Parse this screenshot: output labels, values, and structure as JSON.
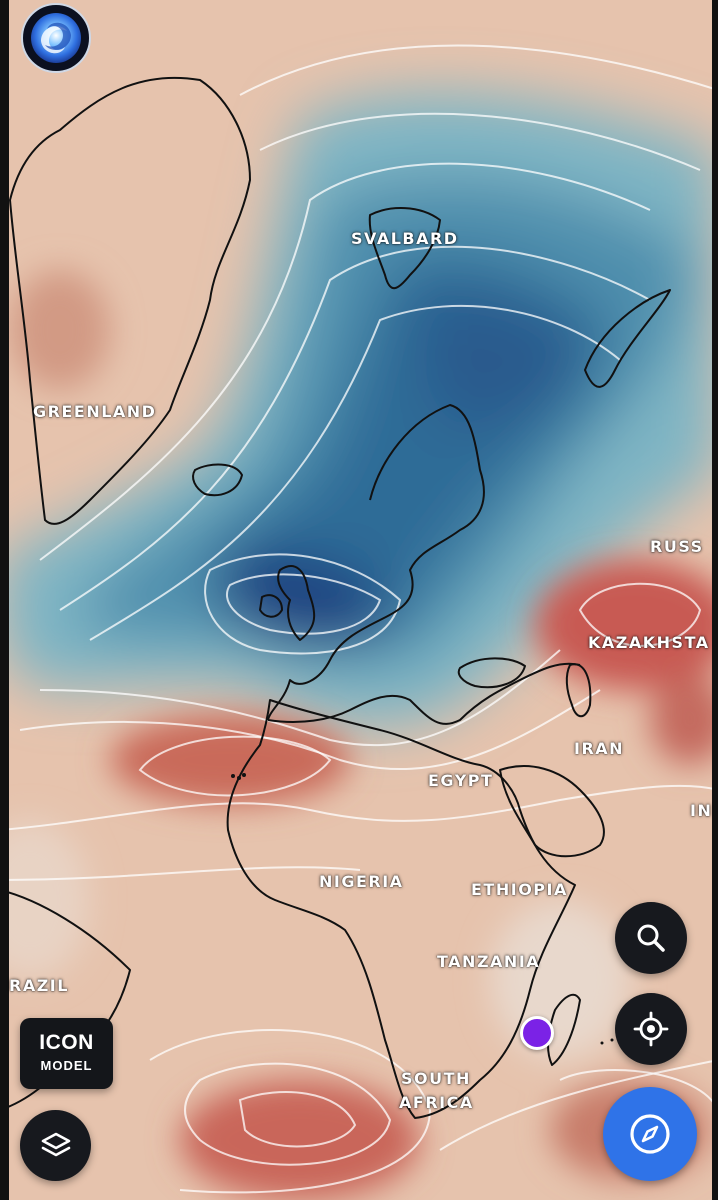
{
  "labels": {
    "svalbard": "SVALBARD",
    "greenland": "GREENLAND",
    "russia": "RUSS",
    "kazakhstan": "KAZAKHSTA",
    "iran": "IRAN",
    "egypt": "EGYPT",
    "india": "IN",
    "nigeria": "NIGERIA",
    "ethiopia": "ETHIOPIA",
    "tanzania": "TANZANIA",
    "brazil": "RAZIL",
    "south_africa_line1": "SOUTH",
    "south_africa_line2": "AFRICA"
  },
  "model": {
    "name": "ICON",
    "caption": "MODEL"
  },
  "controls": {
    "search_icon": "search-icon",
    "locate_icon": "crosshair-icon",
    "compass_icon": "compass-icon",
    "layers_icon": "layers-icon",
    "logo_icon": "swirl-logo-icon"
  },
  "colors": {
    "cold_deep": "#1c3f80",
    "cold": "#4f8fad",
    "warm": "#c85a52",
    "neutral": "#e6c3ad",
    "primary_button": "#2f73e8",
    "marker": "#7b22e6",
    "dark_button": "#17191e"
  }
}
